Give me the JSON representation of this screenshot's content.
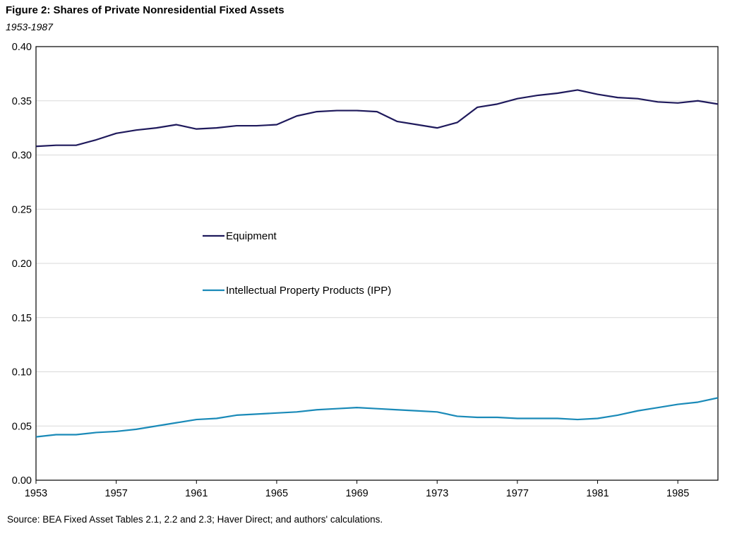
{
  "chart_data": {
    "type": "line",
    "title": "Figure 2: Shares of Private Nonresidential Fixed Assets",
    "subtitle": "1953-1987",
    "source": "Source: BEA Fixed Asset Tables 2.1, 2.2 and 2.3; Haver Direct; and authors' calculations.",
    "x": [
      1953,
      1954,
      1955,
      1956,
      1957,
      1958,
      1959,
      1960,
      1961,
      1962,
      1963,
      1964,
      1965,
      1966,
      1967,
      1968,
      1969,
      1970,
      1971,
      1972,
      1973,
      1974,
      1975,
      1976,
      1977,
      1978,
      1979,
      1980,
      1981,
      1982,
      1983,
      1984,
      1985,
      1986,
      1987
    ],
    "xticks": [
      "1953",
      "1957",
      "1961",
      "1965",
      "1969",
      "1973",
      "1977",
      "1981",
      "1985"
    ],
    "xlim": [
      1953,
      1987
    ],
    "ylim": [
      0,
      0.4
    ],
    "yticks": [
      "0.00",
      "0.05",
      "0.10",
      "0.15",
      "0.20",
      "0.25",
      "0.30",
      "0.35",
      "0.40"
    ],
    "grid": true,
    "legend_position": "center-left",
    "series": [
      {
        "name": "Equipment",
        "color": "#1f1a5c",
        "values": [
          0.308,
          0.309,
          0.309,
          0.314,
          0.32,
          0.323,
          0.325,
          0.328,
          0.324,
          0.325,
          0.327,
          0.327,
          0.328,
          0.336,
          0.34,
          0.341,
          0.341,
          0.34,
          0.331,
          0.328,
          0.325,
          0.33,
          0.344,
          0.347,
          0.352,
          0.355,
          0.357,
          0.36,
          0.356,
          0.353,
          0.352,
          0.349,
          0.348,
          0.35,
          0.347
        ]
      },
      {
        "name": "Intellectual Property Products (IPP)",
        "color": "#1a8ab8",
        "values": [
          0.04,
          0.042,
          0.042,
          0.044,
          0.045,
          0.047,
          0.05,
          0.053,
          0.056,
          0.057,
          0.06,
          0.061,
          0.062,
          0.063,
          0.065,
          0.066,
          0.067,
          0.066,
          0.065,
          0.064,
          0.063,
          0.059,
          0.058,
          0.058,
          0.057,
          0.057,
          0.057,
          0.056,
          0.057,
          0.06,
          0.064,
          0.067,
          0.07,
          0.072,
          0.076
        ]
      }
    ]
  }
}
